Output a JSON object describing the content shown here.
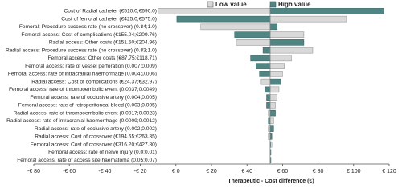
{
  "chart_data": {
    "type": "tornado",
    "x_label": "Therapeutic - Cost difference (€)",
    "baseline": 53,
    "categories": [
      "Cost of Radial catheter (€510.0;€690.0)",
      "Cost of femoral catheter (€425.0;€575.0)",
      "Femoral: Procedure success rate (no crossover) (0.84;1.0)",
      "Femoral access: Cost of complications (€155.04;€209.76)",
      "Radial access: Other costs (€151.50;€204.96)",
      "Radial access: Procedure success rate (no crossover) (0.83;1.0)",
      "Femoral access: Other costs (€87.75;€118.71)",
      "Femoral access: rate of vessel perforation (0.007;0.009)",
      "Femoral access: rate of intracranial haemorrhage (0.004;0.006)",
      "Radial access: Cost of complications (€24.37;€32.97)",
      "Femoral access: rate of thromboembolic event (0.0037;0.0049)",
      "Femoral access: rate of occlusive artery (0.004;0.005)",
      "Femoral access: rate of retroperitoneal bleed (0.003;0.005)",
      "Radial access: rate of thromboembolic event (0.0017;0.0023)",
      "Radial access: rate of intracranial haemorrhage (0.0009;0.0012)",
      "Radial access: rate of occlusive artery (0.002;0.002)",
      "Radial access: Cost of crossover (€194.65;€263.35)",
      "Femoral access: Cost of crossover (€316.20;€427.80)",
      "Femoral access: rate of nerve injury (0.0;0.01)",
      "Femoral access: rate of access site haematoma (0.05;0.07)"
    ],
    "series": [
      {
        "name": "Low value",
        "color": "#d9d9d9",
        "values": [
          -10,
          96,
          14,
          72,
          34,
          77,
          65,
          61,
          60,
          48,
          58,
          57,
          56,
          52,
          55,
          52,
          52,
          54,
          53.5,
          53.5
        ]
      },
      {
        "name": "High value",
        "color": "#4f8583",
        "values": [
          117,
          0.5,
          57,
          33,
          72,
          49,
          42,
          45,
          47,
          59,
          50,
          51,
          51,
          56,
          52,
          55,
          54,
          53,
          53,
          53.2
        ]
      }
    ],
    "xlim": [
      -80,
      120
    ],
    "xticks": [
      {
        "value": -80,
        "label": "-€ 80"
      },
      {
        "value": -60,
        "label": "-€ 60"
      },
      {
        "value": -40,
        "label": "-€ 40"
      },
      {
        "value": -20,
        "label": "-€ 20"
      },
      {
        "value": 0,
        "label": "€ 0"
      },
      {
        "value": 20,
        "label": "€ 20"
      },
      {
        "value": 40,
        "label": "€ 40"
      },
      {
        "value": 60,
        "label": "€ 60"
      },
      {
        "value": 80,
        "label": "€ 80"
      },
      {
        "value": 100,
        "label": "€ 100"
      },
      {
        "value": 120,
        "label": "€ 120"
      }
    ]
  }
}
